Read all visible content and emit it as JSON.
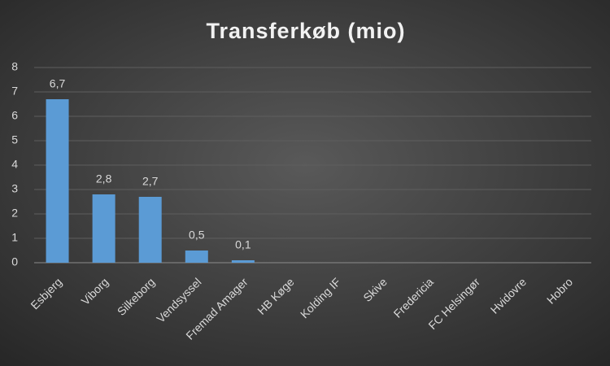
{
  "chart_data": {
    "type": "bar",
    "title": "Transferkøb (mio)",
    "categories": [
      "Esbjerg",
      "Viborg",
      "Silkeborg",
      "Vendsyssel",
      "Fremad Amager",
      "HB Køge",
      "Kolding IF",
      "Skive",
      "Fredericia",
      "FC Helsingør",
      "Hvidovre",
      "Hobro"
    ],
    "values": [
      6.7,
      2.8,
      2.7,
      0.5,
      0.1,
      null,
      null,
      null,
      null,
      null,
      null,
      null
    ],
    "value_labels": [
      "6,7",
      "2,8",
      "2,7",
      "0,5",
      "0,1",
      null,
      null,
      null,
      null,
      null,
      null,
      null
    ],
    "color": "#5b9bd5",
    "ylim": [
      0,
      8
    ],
    "yticks": [
      0,
      1,
      2,
      3,
      4,
      5,
      6,
      7,
      8
    ],
    "grid": true
  }
}
